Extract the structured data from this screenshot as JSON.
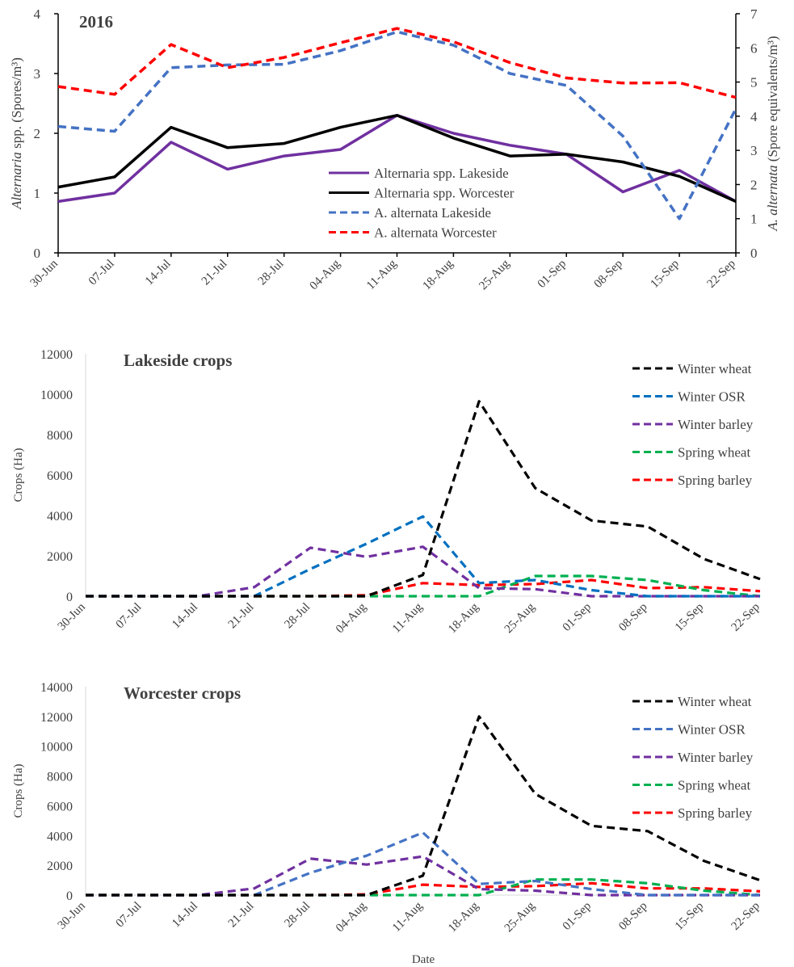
{
  "chart_data": [
    {
      "type": "line",
      "title": "2016",
      "x": [
        "30-Jun",
        "07-Jul",
        "14-Jul",
        "21-Jul",
        "28-Jul",
        "04-Aug",
        "11-Aug",
        "18-Aug",
        "25-Aug",
        "01-Sep",
        "08-Sep",
        "15-Sep",
        "22-Sep"
      ],
      "ylabel_left_italic": "Alternaria",
      "ylabel_left_rest": " spp. (Spores/m³)",
      "ylabel_right_italic": "A. alternata",
      "ylabel_right_rest": " (Spore equivalents/m³)",
      "ylim_left": [
        0,
        4
      ],
      "ylim_right": [
        0,
        7
      ],
      "yticks_left": [
        "0",
        "1",
        "2",
        "3",
        "4"
      ],
      "yticks_right": [
        "0",
        "1",
        "2",
        "3",
        "4",
        "5",
        "6",
        "7"
      ],
      "legend_position": "bottom-center",
      "series": [
        {
          "name": "Alternaria spp. Lakeside",
          "axis": "left",
          "dash": "solid",
          "color": "#7030A0",
          "values": [
            0.86,
            1.0,
            1.85,
            1.4,
            1.62,
            1.73,
            2.3,
            2.0,
            1.8,
            1.65,
            1.02,
            1.38,
            0.86
          ]
        },
        {
          "name": "Alternaria spp. Worcester",
          "axis": "left",
          "dash": "solid",
          "color": "#000000",
          "values": [
            1.1,
            1.27,
            2.1,
            1.76,
            1.83,
            2.1,
            2.3,
            1.92,
            1.62,
            1.65,
            1.52,
            1.28,
            0.86
          ]
        },
        {
          "name": "A. alternata Lakeside",
          "axis": "right",
          "dash": "dashed",
          "color": "#4472C4",
          "values": [
            3.7,
            3.56,
            5.42,
            5.5,
            5.52,
            5.92,
            6.47,
            6.08,
            5.25,
            4.9,
            3.42,
            1.0,
            4.22
          ]
        },
        {
          "name": "A. alternata Worcester",
          "axis": "right",
          "dash": "dashed",
          "color": "#FF0000",
          "values": [
            4.87,
            4.64,
            6.1,
            5.42,
            5.72,
            6.15,
            6.57,
            6.18,
            5.57,
            5.12,
            4.97,
            4.98,
            4.55
          ]
        }
      ]
    },
    {
      "type": "line",
      "title": "Lakeside crops",
      "x": [
        "30-Jun",
        "07-Jul",
        "14-Jul",
        "21-Jul",
        "28-Jul",
        "04-Aug",
        "11-Aug",
        "18-Aug",
        "25-Aug",
        "01-Sep",
        "08-Sep",
        "15-Sep",
        "22-Sep"
      ],
      "ylabel": "Crops (Ha)",
      "ylim": [
        0,
        12000
      ],
      "yticks": [
        "0",
        "2000",
        "4000",
        "6000",
        "8000",
        "10000",
        "12000"
      ],
      "legend_position": "top-right",
      "series": [
        {
          "name": "Winter wheat",
          "dash": "dashed",
          "color": "#000000",
          "values": [
            0,
            0,
            0,
            0,
            0,
            0,
            1050,
            9650,
            5350,
            3750,
            3450,
            1850,
            850
          ]
        },
        {
          "name": "Winter OSR",
          "dash": "dashed",
          "color": "#0070C0",
          "values": [
            0,
            0,
            0,
            0,
            1350,
            2600,
            3950,
            650,
            800,
            300,
            0,
            0,
            0
          ]
        },
        {
          "name": "Winter barley",
          "dash": "dashed",
          "color": "#7030A0",
          "values": [
            0,
            0,
            0,
            450,
            2400,
            1950,
            2450,
            400,
            350,
            0,
            0,
            0,
            0
          ]
        },
        {
          "name": "Spring wheat",
          "dash": "dashed",
          "color": "#00B050",
          "values": [
            0,
            0,
            0,
            0,
            0,
            0,
            0,
            0,
            1000,
            1000,
            800,
            300,
            0
          ]
        },
        {
          "name": "Spring barley",
          "dash": "dashed",
          "color": "#FF0000",
          "values": [
            0,
            0,
            0,
            0,
            0,
            50,
            650,
            550,
            600,
            800,
            400,
            450,
            250
          ]
        }
      ]
    },
    {
      "type": "line",
      "title": "Worcester crops",
      "x": [
        "30-Jun",
        "07-Jul",
        "14-Jul",
        "21-Jul",
        "28-Jul",
        "04-Aug",
        "11-Aug",
        "18-Aug",
        "25-Aug",
        "01-Sep",
        "08-Sep",
        "15-Sep",
        "22-Sep"
      ],
      "xlabel": "Date",
      "ylabel": "Crops (Ha)",
      "ylim": [
        0,
        14000
      ],
      "yticks": [
        "0",
        "2000",
        "4000",
        "6000",
        "8000",
        "10000",
        "12000",
        "14000"
      ],
      "legend_position": "top-right",
      "series": [
        {
          "name": "Winter wheat",
          "dash": "dashed",
          "color": "#000000",
          "values": [
            0,
            0,
            0,
            0,
            0,
            0,
            1300,
            12000,
            6800,
            4650,
            4300,
            2300,
            1000
          ]
        },
        {
          "name": "Winter OSR",
          "dash": "dashed",
          "color": "#4472C4",
          "values": [
            0,
            0,
            0,
            0,
            1500,
            2650,
            4200,
            750,
            950,
            400,
            0,
            0,
            0
          ]
        },
        {
          "name": "Winter barley",
          "dash": "dashed",
          "color": "#7030A0",
          "values": [
            0,
            0,
            0,
            450,
            2450,
            2050,
            2600,
            400,
            300,
            0,
            0,
            0,
            0
          ]
        },
        {
          "name": "Spring wheat",
          "dash": "dashed",
          "color": "#00B050",
          "values": [
            0,
            0,
            0,
            0,
            0,
            0,
            0,
            0,
            1050,
            1050,
            800,
            300,
            0
          ]
        },
        {
          "name": "Spring barley",
          "dash": "dashed",
          "color": "#FF0000",
          "values": [
            0,
            0,
            0,
            0,
            0,
            50,
            700,
            550,
            600,
            800,
            450,
            450,
            250
          ]
        }
      ]
    }
  ]
}
